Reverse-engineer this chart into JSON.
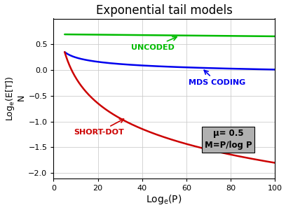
{
  "title": "Exponential tail models",
  "xlabel": "Log_e(P)",
  "ylabel_line1": "Log_e(E[T])",
  "ylabel_line2": "N",
  "xlim": [
    0,
    100
  ],
  "ylim": [
    -2.1,
    1.0
  ],
  "yticks": [
    -2,
    -1.5,
    -1,
    -0.5,
    0,
    0.5
  ],
  "xticks": [
    0,
    20,
    40,
    60,
    80,
    100
  ],
  "background_color": "#ffffff",
  "grid_color": "#c8c8c8",
  "uncoded_color": "#00bb00",
  "mds_color": "#0000ee",
  "shortdot_color": "#cc0000",
  "annotation_box_facecolor": "#b0b0b0",
  "annotation_text_line1": "μ= 0.5",
  "annotation_text_line2": "M=P/log P",
  "uncoded_label": "UNCODED",
  "mds_label": "MDS CODING",
  "shortdot_label": "SHORT-DOT",
  "x_start": 5,
  "x_end": 100
}
